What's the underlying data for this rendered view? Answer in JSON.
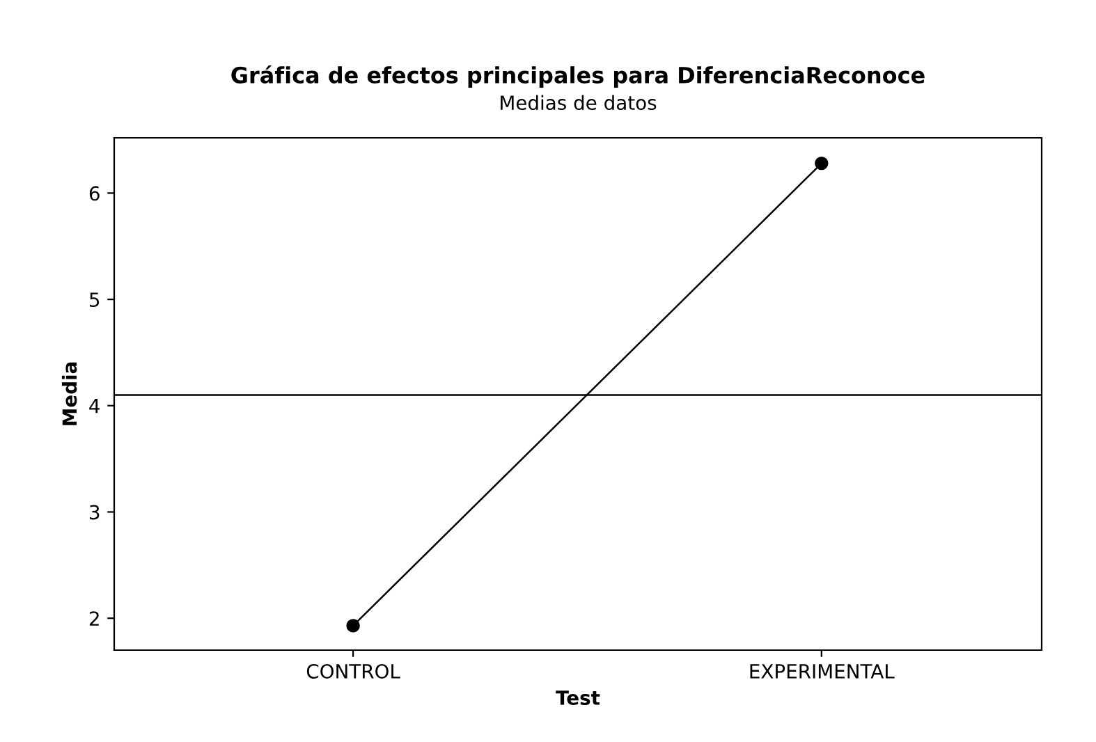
{
  "chart_data": {
    "type": "line",
    "title": "Gráfica de efectos principales para DiferenciaReconoce",
    "subtitle": "Medias de datos",
    "xlabel": "Test",
    "ylabel": "Media",
    "categories": [
      "CONTROL",
      "EXPERIMENTAL"
    ],
    "series": [
      {
        "color": "#000000",
        "values": [
          1.93,
          6.28
        ]
      }
    ],
    "ylim": [
      1.7,
      6.52
    ],
    "yticks": [
      2,
      3,
      4,
      5,
      6
    ],
    "ref_lines": [
      {
        "axis": "y",
        "value": 4.1,
        "color": "#000000"
      }
    ],
    "marker": "circle",
    "line_style": "solid",
    "grid": false,
    "legend": false
  }
}
